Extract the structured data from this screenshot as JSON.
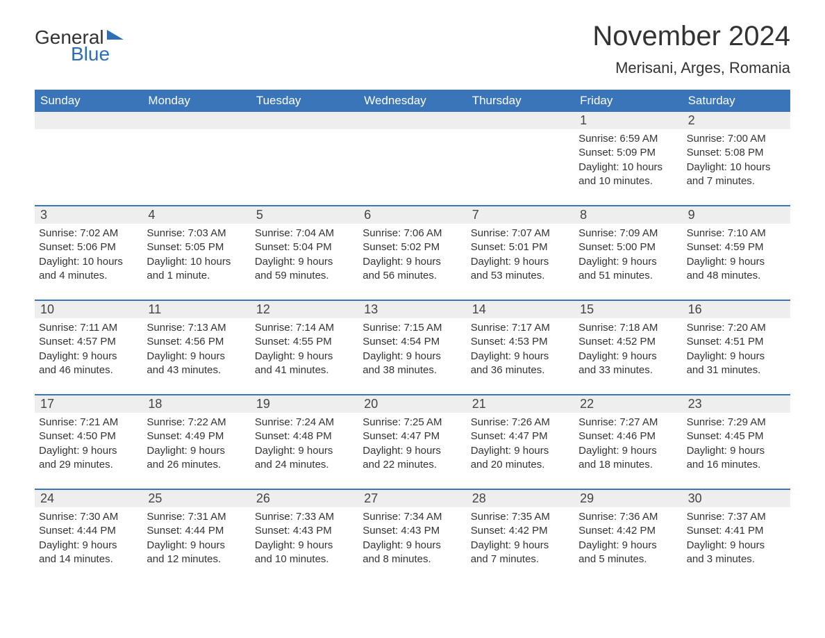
{
  "logo": {
    "word1": "General",
    "word2": "Blue"
  },
  "title": "November 2024",
  "location": "Merisani, Arges, Romania",
  "colors": {
    "header_bg": "#3a75b9",
    "header_text": "#ffffff",
    "daynum_bg": "#eeeeee",
    "border": "#3a75b9",
    "text": "#333333",
    "logo_blue": "#2f6eb5",
    "background": "#ffffff"
  },
  "day_labels": [
    "Sunday",
    "Monday",
    "Tuesday",
    "Wednesday",
    "Thursday",
    "Friday",
    "Saturday"
  ],
  "weeks": [
    [
      {
        "empty": true
      },
      {
        "empty": true
      },
      {
        "empty": true
      },
      {
        "empty": true
      },
      {
        "empty": true
      },
      {
        "num": "1",
        "sunrise": "Sunrise: 6:59 AM",
        "sunset": "Sunset: 5:09 PM",
        "daylight1": "Daylight: 10 hours",
        "daylight2": "and 10 minutes."
      },
      {
        "num": "2",
        "sunrise": "Sunrise: 7:00 AM",
        "sunset": "Sunset: 5:08 PM",
        "daylight1": "Daylight: 10 hours",
        "daylight2": "and 7 minutes."
      }
    ],
    [
      {
        "num": "3",
        "sunrise": "Sunrise: 7:02 AM",
        "sunset": "Sunset: 5:06 PM",
        "daylight1": "Daylight: 10 hours",
        "daylight2": "and 4 minutes."
      },
      {
        "num": "4",
        "sunrise": "Sunrise: 7:03 AM",
        "sunset": "Sunset: 5:05 PM",
        "daylight1": "Daylight: 10 hours",
        "daylight2": "and 1 minute."
      },
      {
        "num": "5",
        "sunrise": "Sunrise: 7:04 AM",
        "sunset": "Sunset: 5:04 PM",
        "daylight1": "Daylight: 9 hours",
        "daylight2": "and 59 minutes."
      },
      {
        "num": "6",
        "sunrise": "Sunrise: 7:06 AM",
        "sunset": "Sunset: 5:02 PM",
        "daylight1": "Daylight: 9 hours",
        "daylight2": "and 56 minutes."
      },
      {
        "num": "7",
        "sunrise": "Sunrise: 7:07 AM",
        "sunset": "Sunset: 5:01 PM",
        "daylight1": "Daylight: 9 hours",
        "daylight2": "and 53 minutes."
      },
      {
        "num": "8",
        "sunrise": "Sunrise: 7:09 AM",
        "sunset": "Sunset: 5:00 PM",
        "daylight1": "Daylight: 9 hours",
        "daylight2": "and 51 minutes."
      },
      {
        "num": "9",
        "sunrise": "Sunrise: 7:10 AM",
        "sunset": "Sunset: 4:59 PM",
        "daylight1": "Daylight: 9 hours",
        "daylight2": "and 48 minutes."
      }
    ],
    [
      {
        "num": "10",
        "sunrise": "Sunrise: 7:11 AM",
        "sunset": "Sunset: 4:57 PM",
        "daylight1": "Daylight: 9 hours",
        "daylight2": "and 46 minutes."
      },
      {
        "num": "11",
        "sunrise": "Sunrise: 7:13 AM",
        "sunset": "Sunset: 4:56 PM",
        "daylight1": "Daylight: 9 hours",
        "daylight2": "and 43 minutes."
      },
      {
        "num": "12",
        "sunrise": "Sunrise: 7:14 AM",
        "sunset": "Sunset: 4:55 PM",
        "daylight1": "Daylight: 9 hours",
        "daylight2": "and 41 minutes."
      },
      {
        "num": "13",
        "sunrise": "Sunrise: 7:15 AM",
        "sunset": "Sunset: 4:54 PM",
        "daylight1": "Daylight: 9 hours",
        "daylight2": "and 38 minutes."
      },
      {
        "num": "14",
        "sunrise": "Sunrise: 7:17 AM",
        "sunset": "Sunset: 4:53 PM",
        "daylight1": "Daylight: 9 hours",
        "daylight2": "and 36 minutes."
      },
      {
        "num": "15",
        "sunrise": "Sunrise: 7:18 AM",
        "sunset": "Sunset: 4:52 PM",
        "daylight1": "Daylight: 9 hours",
        "daylight2": "and 33 minutes."
      },
      {
        "num": "16",
        "sunrise": "Sunrise: 7:20 AM",
        "sunset": "Sunset: 4:51 PM",
        "daylight1": "Daylight: 9 hours",
        "daylight2": "and 31 minutes."
      }
    ],
    [
      {
        "num": "17",
        "sunrise": "Sunrise: 7:21 AM",
        "sunset": "Sunset: 4:50 PM",
        "daylight1": "Daylight: 9 hours",
        "daylight2": "and 29 minutes."
      },
      {
        "num": "18",
        "sunrise": "Sunrise: 7:22 AM",
        "sunset": "Sunset: 4:49 PM",
        "daylight1": "Daylight: 9 hours",
        "daylight2": "and 26 minutes."
      },
      {
        "num": "19",
        "sunrise": "Sunrise: 7:24 AM",
        "sunset": "Sunset: 4:48 PM",
        "daylight1": "Daylight: 9 hours",
        "daylight2": "and 24 minutes."
      },
      {
        "num": "20",
        "sunrise": "Sunrise: 7:25 AM",
        "sunset": "Sunset: 4:47 PM",
        "daylight1": "Daylight: 9 hours",
        "daylight2": "and 22 minutes."
      },
      {
        "num": "21",
        "sunrise": "Sunrise: 7:26 AM",
        "sunset": "Sunset: 4:47 PM",
        "daylight1": "Daylight: 9 hours",
        "daylight2": "and 20 minutes."
      },
      {
        "num": "22",
        "sunrise": "Sunrise: 7:27 AM",
        "sunset": "Sunset: 4:46 PM",
        "daylight1": "Daylight: 9 hours",
        "daylight2": "and 18 minutes."
      },
      {
        "num": "23",
        "sunrise": "Sunrise: 7:29 AM",
        "sunset": "Sunset: 4:45 PM",
        "daylight1": "Daylight: 9 hours",
        "daylight2": "and 16 minutes."
      }
    ],
    [
      {
        "num": "24",
        "sunrise": "Sunrise: 7:30 AM",
        "sunset": "Sunset: 4:44 PM",
        "daylight1": "Daylight: 9 hours",
        "daylight2": "and 14 minutes."
      },
      {
        "num": "25",
        "sunrise": "Sunrise: 7:31 AM",
        "sunset": "Sunset: 4:44 PM",
        "daylight1": "Daylight: 9 hours",
        "daylight2": "and 12 minutes."
      },
      {
        "num": "26",
        "sunrise": "Sunrise: 7:33 AM",
        "sunset": "Sunset: 4:43 PM",
        "daylight1": "Daylight: 9 hours",
        "daylight2": "and 10 minutes."
      },
      {
        "num": "27",
        "sunrise": "Sunrise: 7:34 AM",
        "sunset": "Sunset: 4:43 PM",
        "daylight1": "Daylight: 9 hours",
        "daylight2": "and 8 minutes."
      },
      {
        "num": "28",
        "sunrise": "Sunrise: 7:35 AM",
        "sunset": "Sunset: 4:42 PM",
        "daylight1": "Daylight: 9 hours",
        "daylight2": "and 7 minutes."
      },
      {
        "num": "29",
        "sunrise": "Sunrise: 7:36 AM",
        "sunset": "Sunset: 4:42 PM",
        "daylight1": "Daylight: 9 hours",
        "daylight2": "and 5 minutes."
      },
      {
        "num": "30",
        "sunrise": "Sunrise: 7:37 AM",
        "sunset": "Sunset: 4:41 PM",
        "daylight1": "Daylight: 9 hours",
        "daylight2": "and 3 minutes."
      }
    ]
  ]
}
